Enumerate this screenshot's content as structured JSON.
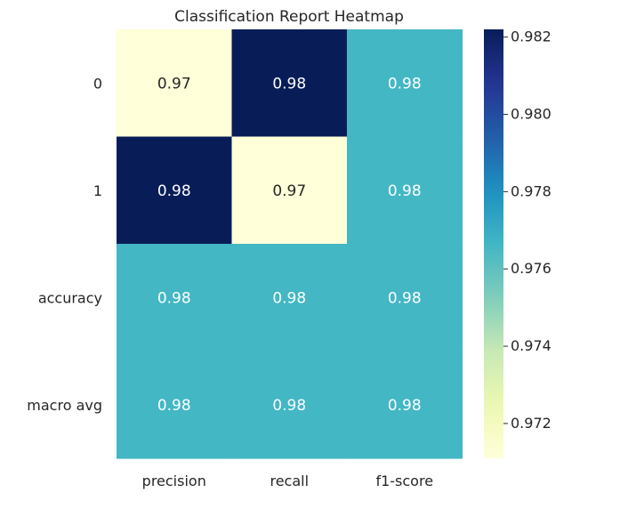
{
  "chart_data": {
    "type": "heatmap",
    "title": "Classification Report Heatmap",
    "xlabel": "",
    "ylabel": "",
    "columns": [
      "precision",
      "recall",
      "f1-score"
    ],
    "rows": [
      "0",
      "1",
      "accuracy",
      "macro avg"
    ],
    "values": [
      [
        0.9711,
        0.9822,
        0.9766
      ],
      [
        0.9822,
        0.9711,
        0.9766
      ],
      [
        0.9766,
        0.9766,
        0.9766
      ],
      [
        0.9766,
        0.9766,
        0.9766
      ]
    ],
    "annotations": [
      [
        "0.97",
        "0.98",
        "0.98"
      ],
      [
        "0.98",
        "0.97",
        "0.98"
      ],
      [
        "0.98",
        "0.98",
        "0.98"
      ],
      [
        "0.98",
        "0.98",
        "0.98"
      ]
    ],
    "colormap": "YlGnBu",
    "vmin": 0.9711,
    "vmax": 0.9822,
    "colorbar_ticks": [
      0.972,
      0.974,
      0.976,
      0.978,
      0.98,
      0.982
    ],
    "colorbar_tick_labels": [
      "0.972",
      "0.974",
      "0.976",
      "0.978",
      "0.980",
      "0.982"
    ],
    "colors": {
      "low": "#ffffd9",
      "high": "#081d58",
      "text_dark": "#262626",
      "text_light": "#ffffff"
    }
  }
}
